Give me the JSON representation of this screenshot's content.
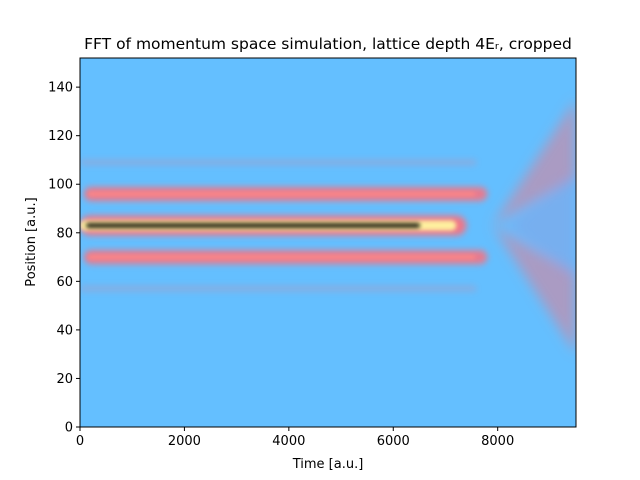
{
  "chart_data": {
    "type": "heatmap",
    "title": "FFT of momentum space simulation, lattice depth 4Eᵣ, cropped",
    "xlabel": "Time [a.u.]",
    "ylabel": "Position [a.u.]",
    "xlim": [
      0,
      9500
    ],
    "ylim": [
      0,
      152
    ],
    "xticks": [
      0,
      2000,
      4000,
      6000,
      8000
    ],
    "yticks": [
      0,
      20,
      40,
      60,
      80,
      100,
      120,
      140
    ],
    "grid": false,
    "colormap": [
      "#64bfff",
      "#ff6e7a",
      "#fff7a0",
      "#000000"
    ],
    "background_color": "#64bfff",
    "bands": [
      {
        "name": "central",
        "y": 83,
        "x_end": 7400,
        "intensity": "high"
      },
      {
        "name": "upper-first-order",
        "y": 96,
        "x_end": 7800,
        "intensity": "medium"
      },
      {
        "name": "lower-first-order",
        "y": 70,
        "x_end": 7800,
        "intensity": "medium"
      },
      {
        "name": "upper-second-order",
        "y": 109,
        "x_end": 7600,
        "intensity": "faint"
      },
      {
        "name": "lower-second-order",
        "y": 57,
        "x_end": 7600,
        "intensity": "faint"
      }
    ],
    "expansion": {
      "x_start": 7900,
      "x_end": 9500,
      "y_top": 135,
      "y_bottom": 30
    }
  }
}
